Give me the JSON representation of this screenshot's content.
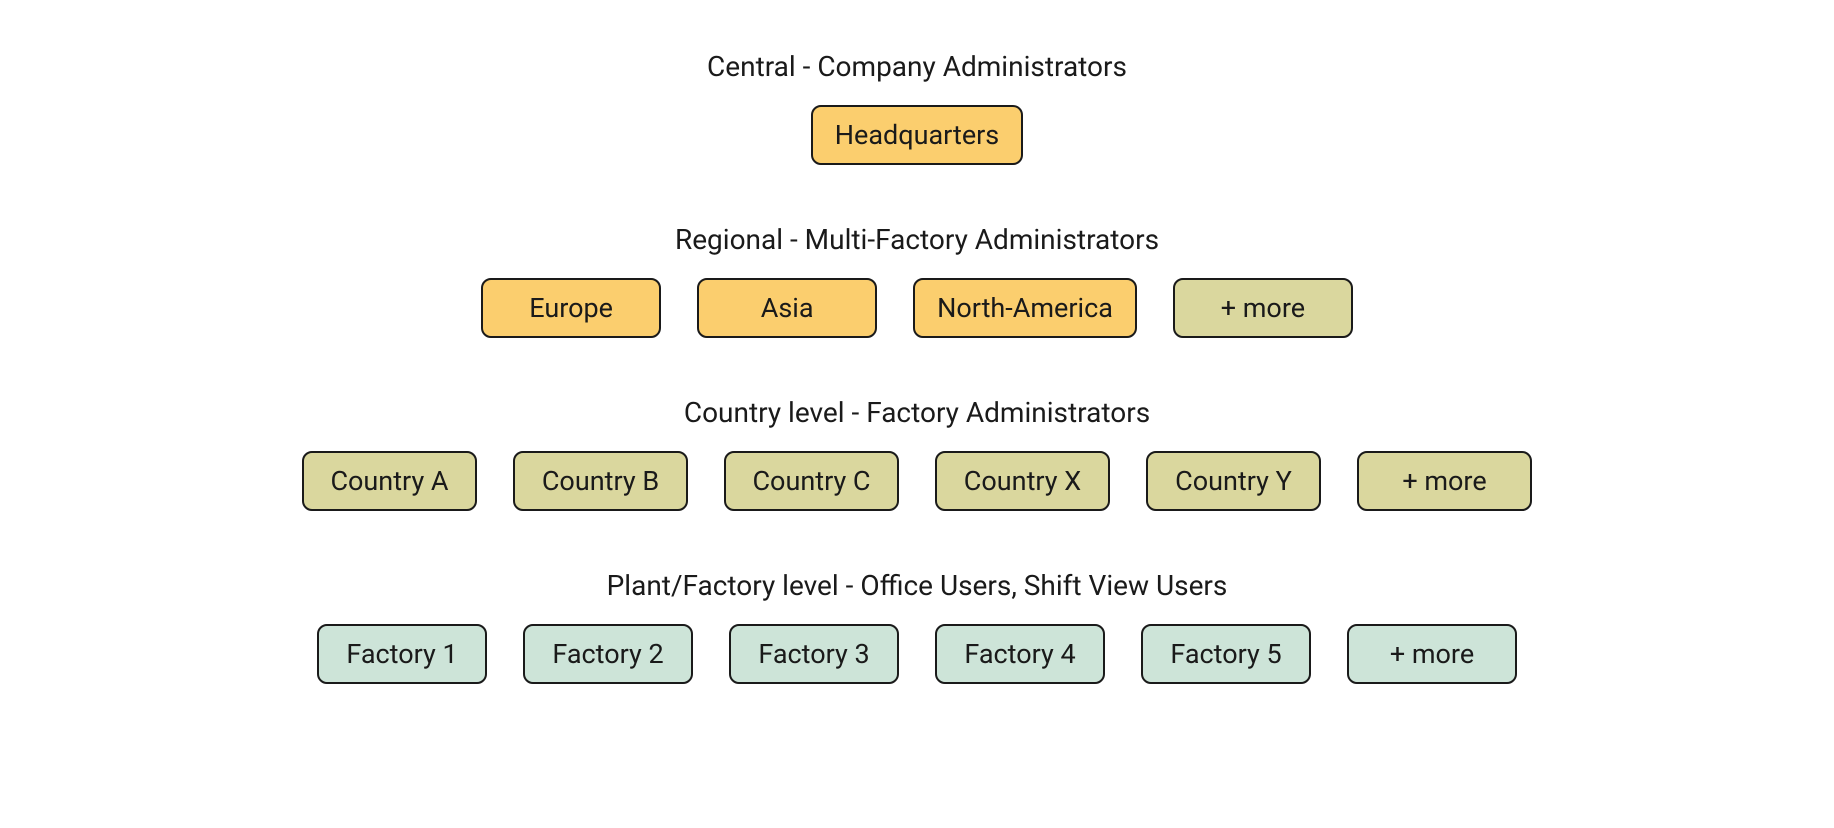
{
  "diagram": {
    "type": "tree",
    "background_color": "#ffffff",
    "node_border_color": "#1a1a1a",
    "node_border_width": 2,
    "node_border_radius": 10,
    "title_fontsize": 28,
    "title_color": "#1a1a1a",
    "node_fontsize": 27,
    "node_text_color": "#1a1a1a",
    "colors": {
      "orange": "#fbce6e",
      "olive": "#dad79e",
      "mint": "#cde4d8"
    },
    "tiers": [
      {
        "title": "Central - Company Administrators",
        "nodes": [
          {
            "label": "Headquarters",
            "fill": "#fbce6e",
            "min_width": 200
          }
        ]
      },
      {
        "title": "Regional - Multi-Factory Administrators",
        "nodes": [
          {
            "label": "Europe",
            "fill": "#fbce6e",
            "min_width": 180
          },
          {
            "label": "Asia",
            "fill": "#fbce6e",
            "min_width": 180
          },
          {
            "label": "North-America",
            "fill": "#fbce6e",
            "min_width": 220
          },
          {
            "label": "+ more",
            "fill": "#dad79e",
            "min_width": 180
          }
        ]
      },
      {
        "title": "Country level - Factory Administrators",
        "nodes": [
          {
            "label": "Country A",
            "fill": "#dad79e",
            "min_width": 175
          },
          {
            "label": "Country B",
            "fill": "#dad79e",
            "min_width": 175
          },
          {
            "label": "Country C",
            "fill": "#dad79e",
            "min_width": 175
          },
          {
            "label": "Country X",
            "fill": "#dad79e",
            "min_width": 175
          },
          {
            "label": "Country Y",
            "fill": "#dad79e",
            "min_width": 175
          },
          {
            "label": "+ more",
            "fill": "#dad79e",
            "min_width": 175
          }
        ]
      },
      {
        "title": "Plant/Factory level - Office Users, Shift View Users",
        "nodes": [
          {
            "label": "Factory 1",
            "fill": "#cde4d8",
            "min_width": 170
          },
          {
            "label": "Factory 2",
            "fill": "#cde4d8",
            "min_width": 170
          },
          {
            "label": "Factory 3",
            "fill": "#cde4d8",
            "min_width": 170
          },
          {
            "label": "Factory 4",
            "fill": "#cde4d8",
            "min_width": 170
          },
          {
            "label": "Factory 5",
            "fill": "#cde4d8",
            "min_width": 170
          },
          {
            "label": "+ more",
            "fill": "#cde4d8",
            "min_width": 170
          }
        ]
      }
    ]
  }
}
